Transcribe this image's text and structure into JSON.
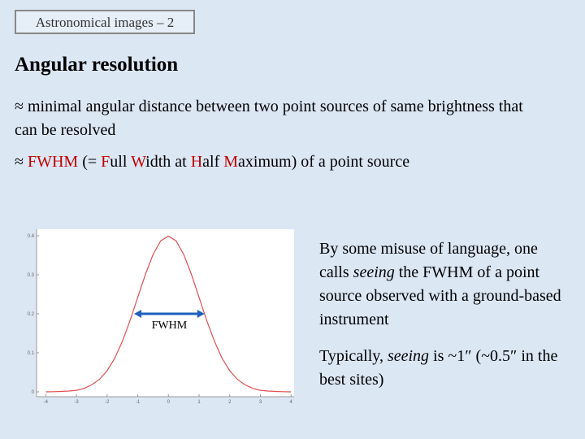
{
  "header": {
    "tag": "Astronomical images – 2",
    "title": "Angular resolution"
  },
  "para1": "≈ minimal angular distance between two point sources of same brightness that can be resolved",
  "para2": [
    {
      "text": "≈ "
    },
    {
      "text": "FWHM",
      "red": true
    },
    {
      "text": " (= "
    },
    {
      "text": "F",
      "red": true
    },
    {
      "text": "ull "
    },
    {
      "text": "W",
      "red": true
    },
    {
      "text": "idth at "
    },
    {
      "text": "H",
      "red": true
    },
    {
      "text": "alf "
    },
    {
      "text": "M",
      "red": true
    },
    {
      "text": "aximum) of a point source"
    }
  ],
  "side1": [
    {
      "text": "By some misuse of language, one calls "
    },
    {
      "text": "seeing",
      "italic": true
    },
    {
      "text": " the FWHM of a point source observed with a ground-based instrument"
    }
  ],
  "side2": [
    {
      "text": "Typically, "
    },
    {
      "text": "seeing",
      "italic": true
    },
    {
      "text": " is ~1″ (~0.5″ in the best sites)"
    }
  ],
  "figure": {
    "xlim": [
      -4.3,
      4.1
    ],
    "ylim": [
      0,
      0.4
    ],
    "xticks": [
      -4,
      -3,
      -2,
      -1,
      0,
      1,
      2,
      3,
      4
    ],
    "yticks": [
      0,
      0.1,
      0.2,
      0.3,
      0.4
    ],
    "curve_color": "#e05050",
    "x": [
      -4,
      -3.75,
      -3.5,
      -3.25,
      -3,
      -2.75,
      -2.5,
      -2.25,
      -2,
      -1.75,
      -1.5,
      -1.25,
      -1,
      -0.75,
      -0.5,
      -0.25,
      0,
      0.25,
      0.5,
      0.75,
      1,
      1.25,
      1.5,
      1.75,
      2,
      2.25,
      2.5,
      2.75,
      3,
      3.25,
      3.5,
      3.75,
      4
    ],
    "y": [
      0.0001,
      0.0004,
      0.001,
      0.002,
      0.004,
      0.009,
      0.018,
      0.032,
      0.054,
      0.086,
      0.13,
      0.183,
      0.242,
      0.301,
      0.352,
      0.387,
      0.399,
      0.387,
      0.352,
      0.301,
      0.242,
      0.183,
      0.13,
      0.086,
      0.054,
      0.032,
      0.018,
      0.009,
      0.004,
      0.002,
      0.001,
      0.0004,
      0.0001
    ],
    "fwhm": {
      "label": "FWHM",
      "from": -1.12,
      "to": 1.18,
      "level": 0.2,
      "color": "#1f5fbf"
    }
  }
}
